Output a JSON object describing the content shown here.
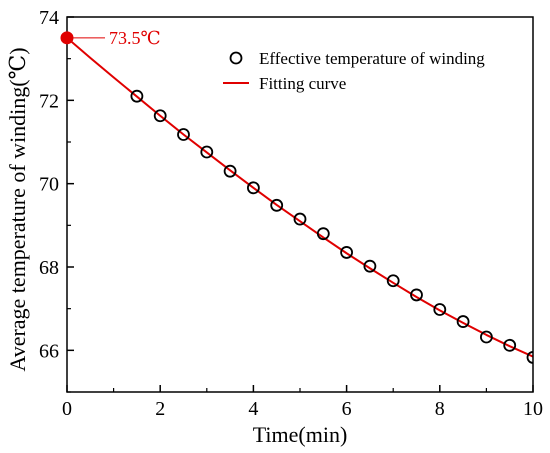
{
  "chart_data": {
    "type": "scatter",
    "xlabel": "Time(min)",
    "ylabel": "Average temperature of winding(℃)",
    "xlim": [
      0,
      10
    ],
    "ylim": [
      65,
      74
    ],
    "x_ticks": [
      "0",
      "2",
      "4",
      "6",
      "8",
      "10"
    ],
    "y_ticks": [
      "66",
      "68",
      "70",
      "72",
      "74"
    ],
    "grid": false,
    "legend_position": "top-right",
    "series": [
      {
        "name": "Effective temperature of winding",
        "kind": "scatter",
        "marker": "open-circle",
        "color": "#000000",
        "x": [
          1.5,
          2.0,
          2.5,
          3.0,
          3.5,
          4.0,
          4.5,
          5.0,
          5.5,
          6.0,
          6.5,
          7.0,
          7.5,
          8.0,
          8.5,
          9.0,
          9.5,
          10.0
        ],
        "y": [
          72.1,
          71.63,
          71.18,
          70.76,
          70.3,
          69.9,
          69.48,
          69.15,
          68.8,
          68.35,
          68.02,
          67.67,
          67.33,
          66.98,
          66.69,
          66.32,
          66.12,
          65.83
        ]
      },
      {
        "name": "Fitting curve",
        "kind": "line",
        "color": "#e00000",
        "x": [
          0,
          0.5,
          1.0,
          1.5,
          2.0,
          2.5,
          3.0,
          3.5,
          4.0,
          4.5,
          5.0,
          5.5,
          6.0,
          6.5,
          7.0,
          7.5,
          8.0,
          8.5,
          9.0,
          9.5,
          10.0
        ],
        "y": [
          73.5,
          73.02,
          72.55,
          72.09,
          71.63,
          71.18,
          70.75,
          70.32,
          69.9,
          69.49,
          69.1,
          68.71,
          68.33,
          67.97,
          67.62,
          67.28,
          66.96,
          66.66,
          66.37,
          66.1,
          65.85
        ]
      }
    ],
    "annotation": {
      "text": "73.5℃",
      "x": 0,
      "y": 73.5,
      "color": "#e00000"
    }
  }
}
